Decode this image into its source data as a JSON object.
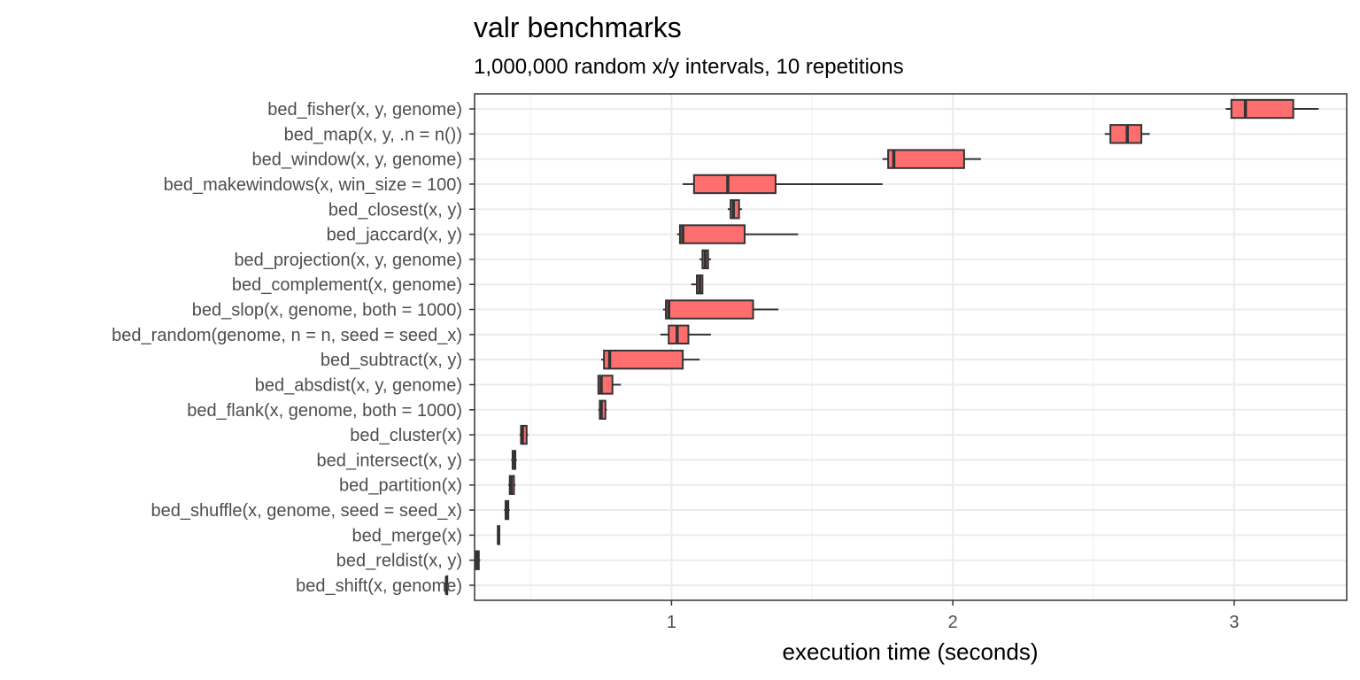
{
  "chart_data": {
    "type": "box",
    "orientation": "horizontal",
    "title": "valr benchmarks",
    "subtitle": "1,000,000 random x/y intervals, 10 repetitions",
    "xlabel": "execution time (seconds)",
    "xlim": [
      0.3,
      3.4
    ],
    "xticks": [
      1,
      2,
      3
    ],
    "grid": true,
    "colors": {
      "box_fill": "#ff6e6e",
      "box_stroke": "#333333",
      "grid_major": "#ebebeb",
      "grid_minor": "#f4f4f4",
      "panel_border": "#333333"
    },
    "categories": [
      "bed_fisher(x, y, genome)",
      "bed_map(x, y, .n = n())",
      "bed_window(x, y, genome)",
      "bed_makewindows(x, win_size = 100)",
      "bed_closest(x, y)",
      "bed_jaccard(x, y)",
      "bed_projection(x, y, genome)",
      "bed_complement(x, genome)",
      "bed_slop(x, genome, both = 1000)",
      "bed_random(genome, n = n, seed = seed_x)",
      "bed_subtract(x, y)",
      "bed_absdist(x, y, genome)",
      "bed_flank(x, genome, both = 1000)",
      "bed_cluster(x)",
      "bed_intersect(x, y)",
      "bed_partition(x)",
      "bed_shuffle(x, genome, seed = seed_x)",
      "bed_merge(x)",
      "bed_reldist(x, y)",
      "bed_shift(x, genome)"
    ],
    "boxes": [
      {
        "min": 2.97,
        "q1": 2.99,
        "median": 3.04,
        "q3": 3.21,
        "max": 3.3
      },
      {
        "min": 2.54,
        "q1": 2.56,
        "median": 2.62,
        "q3": 2.67,
        "max": 2.7
      },
      {
        "min": 1.75,
        "q1": 1.77,
        "median": 1.79,
        "q3": 2.04,
        "max": 2.1
      },
      {
        "min": 1.04,
        "q1": 1.08,
        "median": 1.2,
        "q3": 1.37,
        "max": 1.75
      },
      {
        "min": 1.2,
        "q1": 1.21,
        "median": 1.22,
        "q3": 1.24,
        "max": 1.25
      },
      {
        "min": 1.02,
        "q1": 1.03,
        "median": 1.04,
        "q3": 1.26,
        "max": 1.45
      },
      {
        "min": 1.1,
        "q1": 1.11,
        "median": 1.12,
        "q3": 1.13,
        "max": 1.14
      },
      {
        "min": 1.07,
        "q1": 1.09,
        "median": 1.1,
        "q3": 1.11,
        "max": 1.11
      },
      {
        "min": 0.97,
        "q1": 0.98,
        "median": 0.99,
        "q3": 1.29,
        "max": 1.38
      },
      {
        "min": 0.96,
        "q1": 0.99,
        "median": 1.02,
        "q3": 1.06,
        "max": 1.14
      },
      {
        "min": 0.75,
        "q1": 0.76,
        "median": 0.78,
        "q3": 1.04,
        "max": 1.1
      },
      {
        "min": 0.74,
        "q1": 0.74,
        "median": 0.75,
        "q3": 0.79,
        "max": 0.82
      },
      {
        "min": 0.74,
        "q1": 0.745,
        "median": 0.75,
        "q3": 0.765,
        "max": 0.77
      },
      {
        "min": 0.46,
        "q1": 0.465,
        "median": 0.47,
        "q3": 0.485,
        "max": 0.49
      },
      {
        "min": 0.43,
        "q1": 0.435,
        "median": 0.44,
        "q3": 0.445,
        "max": 0.45
      },
      {
        "min": 0.42,
        "q1": 0.425,
        "median": 0.43,
        "q3": 0.44,
        "max": 0.445
      },
      {
        "min": 0.405,
        "q1": 0.41,
        "median": 0.415,
        "q3": 0.42,
        "max": 0.425
      },
      {
        "min": 0.38,
        "q1": 0.383,
        "median": 0.385,
        "q3": 0.388,
        "max": 0.39
      },
      {
        "min": 0.3,
        "q1": 0.305,
        "median": 0.31,
        "q3": 0.315,
        "max": 0.32
      },
      {
        "min": 0.2,
        "q1": 0.2,
        "median": 0.2,
        "q3": 0.2,
        "max": 0.2
      }
    ]
  }
}
